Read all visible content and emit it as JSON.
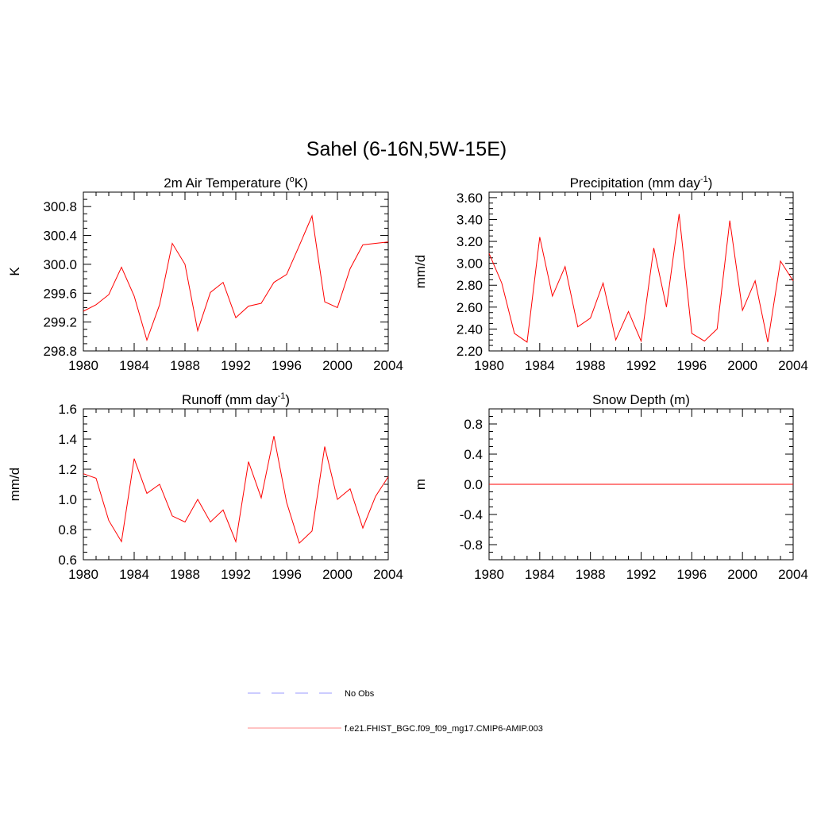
{
  "title": "Sahel (6-16N,5W-15E)",
  "colors": {
    "model": "#ff0000",
    "obs": "#9999ff",
    "axis": "#000000"
  },
  "legend": [
    {
      "label": "No Obs",
      "style": "dashed",
      "color": "#9999ff"
    },
    {
      "label": "f.e21.FHIST_BGC.f09_f09_mg17.CMIP6-AMIP.003",
      "style": "solid",
      "color": "#ff8888"
    }
  ],
  "chart_data": [
    {
      "type": "line",
      "title_main": "2m Air Temperature (",
      "title_sup": "o",
      "title_end": "K)",
      "ylabel": "K",
      "xlim": [
        1980,
        2004
      ],
      "ylim": [
        298.8,
        301.0
      ],
      "xticks": [
        "1980",
        "1984",
        "1988",
        "1992",
        "1996",
        "2000",
        "2004"
      ],
      "xtick_values": [
        1980,
        1984,
        1988,
        1992,
        1996,
        2000,
        2004
      ],
      "yticks": [
        "298.8",
        "299.2",
        "299.6",
        "300.0",
        "300.4",
        "300.8"
      ],
      "ytick_values": [
        298.8,
        299.2,
        299.6,
        300.0,
        300.4,
        300.8
      ],
      "x": [
        1980,
        1981,
        1982,
        1983,
        1984,
        1985,
        1986,
        1987,
        1988,
        1989,
        1990,
        1991,
        1992,
        1993,
        1994,
        1995,
        1996,
        1997,
        1998,
        1999,
        2000,
        2001,
        2002,
        2003,
        2004
      ],
      "series": [
        {
          "name": "f.e21.FHIST_BGC.f09_f09_mg17.CMIP6-AMIP.003",
          "values": [
            299.35,
            299.44,
            299.58,
            299.96,
            299.56,
            298.95,
            299.44,
            300.29,
            300.0,
            299.08,
            299.61,
            299.75,
            299.26,
            299.42,
            299.46,
            299.75,
            299.86,
            300.26,
            300.67,
            299.48,
            299.4,
            299.94,
            300.27,
            300.29,
            300.31
          ]
        }
      ]
    },
    {
      "type": "line",
      "title_main": "Precipitation (mm day",
      "title_sup": "-1",
      "title_end": ")",
      "ylabel": "mm/d",
      "xlim": [
        1980,
        2004
      ],
      "ylim": [
        2.2,
        3.65
      ],
      "xticks": [
        "1980",
        "1984",
        "1988",
        "1992",
        "1996",
        "2000",
        "2004"
      ],
      "xtick_values": [
        1980,
        1984,
        1988,
        1992,
        1996,
        2000,
        2004
      ],
      "yticks": [
        "2.20",
        "2.40",
        "2.60",
        "2.80",
        "3.00",
        "3.20",
        "3.40",
        "3.60"
      ],
      "ytick_values": [
        2.2,
        2.4,
        2.6,
        2.8,
        3.0,
        3.2,
        3.4,
        3.6
      ],
      "x": [
        1980,
        1981,
        1982,
        1983,
        1984,
        1985,
        1986,
        1987,
        1988,
        1989,
        1990,
        1991,
        1992,
        1993,
        1994,
        1995,
        1996,
        1997,
        1998,
        1999,
        2000,
        2001,
        2002,
        2003,
        2004
      ],
      "series": [
        {
          "name": "f.e21.FHIST_BGC.f09_f09_mg17.CMIP6-AMIP.003",
          "values": [
            3.09,
            2.82,
            2.36,
            2.28,
            3.24,
            2.7,
            2.97,
            2.42,
            2.5,
            2.82,
            2.3,
            2.56,
            2.29,
            3.14,
            2.6,
            3.45,
            2.36,
            2.29,
            2.4,
            3.39,
            2.57,
            2.84,
            2.28,
            3.02,
            2.84
          ]
        }
      ]
    },
    {
      "type": "line",
      "title_main": "Runoff (mm day",
      "title_sup": "-1",
      "title_end": ")",
      "ylabel": "mm/d",
      "xlim": [
        1980,
        2004
      ],
      "ylim": [
        0.6,
        1.6
      ],
      "xticks": [
        "1980",
        "1984",
        "1988",
        "1992",
        "1996",
        "2000",
        "2004"
      ],
      "xtick_values": [
        1980,
        1984,
        1988,
        1992,
        1996,
        2000,
        2004
      ],
      "yticks": [
        "0.6",
        "0.8",
        "1.0",
        "1.2",
        "1.4",
        "1.6"
      ],
      "ytick_values": [
        0.6,
        0.8,
        1.0,
        1.2,
        1.4,
        1.6
      ],
      "x": [
        1980,
        1981,
        1982,
        1983,
        1984,
        1985,
        1986,
        1987,
        1988,
        1989,
        1990,
        1991,
        1992,
        1993,
        1994,
        1995,
        1996,
        1997,
        1998,
        1999,
        2000,
        2001,
        2002,
        2003,
        2004
      ],
      "series": [
        {
          "name": "f.e21.FHIST_BGC.f09_f09_mg17.CMIP6-AMIP.003",
          "values": [
            1.17,
            1.14,
            0.86,
            0.72,
            1.27,
            1.04,
            1.1,
            0.89,
            0.85,
            1.0,
            0.85,
            0.93,
            0.72,
            1.25,
            1.01,
            1.42,
            0.98,
            0.71,
            0.79,
            1.35,
            1.0,
            1.07,
            0.81,
            1.02,
            1.15
          ]
        }
      ]
    },
    {
      "type": "line",
      "title_main": "Snow Depth (m)",
      "title_sup": "",
      "title_end": "",
      "ylabel": "m",
      "xlim": [
        1980,
        2004
      ],
      "ylim": [
        -1.0,
        1.0
      ],
      "xticks": [
        "1980",
        "1984",
        "1988",
        "1992",
        "1996",
        "2000",
        "2004"
      ],
      "xtick_values": [
        1980,
        1984,
        1988,
        1992,
        1996,
        2000,
        2004
      ],
      "yticks": [
        "-0.8",
        "-0.4",
        "0.0",
        "0.4",
        "0.8"
      ],
      "ytick_values": [
        -0.8,
        -0.4,
        0.0,
        0.4,
        0.8
      ],
      "x": [
        1980,
        1981,
        1982,
        1983,
        1984,
        1985,
        1986,
        1987,
        1988,
        1989,
        1990,
        1991,
        1992,
        1993,
        1994,
        1995,
        1996,
        1997,
        1998,
        1999,
        2000,
        2001,
        2002,
        2003,
        2004
      ],
      "series": [
        {
          "name": "f.e21.FHIST_BGC.f09_f09_mg17.CMIP6-AMIP.003",
          "values": [
            0,
            0,
            0,
            0,
            0,
            0,
            0,
            0,
            0,
            0,
            0,
            0,
            0,
            0,
            0,
            0,
            0,
            0,
            0,
            0,
            0,
            0,
            0,
            0,
            0
          ]
        }
      ]
    }
  ]
}
